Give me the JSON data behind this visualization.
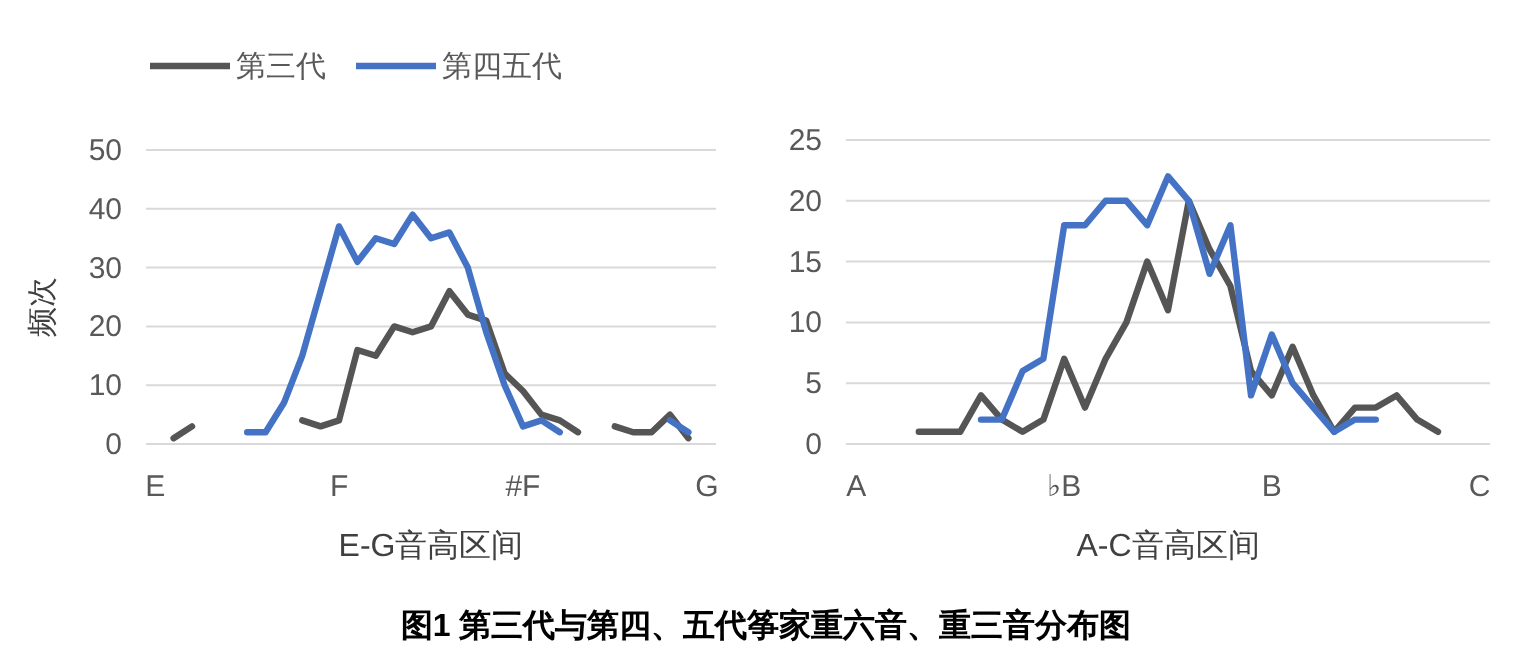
{
  "chart_data": [
    {
      "type": "line",
      "xlabel": "E-G音高区间",
      "ylabel": "频次",
      "legend": "top left",
      "ylim": [
        0,
        50
      ],
      "yticks": [
        0,
        10,
        20,
        30,
        40,
        50
      ],
      "grid": "y",
      "categories": [
        "E",
        null,
        null,
        null,
        null,
        null,
        null,
        null,
        null,
        null,
        "F",
        null,
        null,
        null,
        null,
        null,
        null,
        null,
        null,
        null,
        "#F",
        null,
        null,
        null,
        null,
        null,
        null,
        null,
        null,
        null,
        "G"
      ],
      "series": [
        {
          "name": "第三代",
          "color": "#555555",
          "values": [
            null,
            1,
            3,
            null,
            null,
            null,
            null,
            null,
            4,
            3,
            4,
            16,
            15,
            20,
            19,
            20,
            26,
            22,
            21,
            12,
            9,
            5,
            4,
            2,
            null,
            3,
            2,
            2,
            5,
            1,
            null
          ]
        },
        {
          "name": "第四五代",
          "color": "#4472c4",
          "values": [
            null,
            null,
            null,
            null,
            null,
            2,
            2,
            7,
            15,
            26,
            37,
            31,
            35,
            34,
            39,
            35,
            36,
            30,
            19,
            10,
            3,
            4,
            2,
            null,
            null,
            null,
            null,
            null,
            4,
            2,
            null
          ]
        }
      ],
      "annotations": [
        "图1   第三代与第四、五代筝家重六音、重三音分布图"
      ]
    },
    {
      "type": "line",
      "xlabel": "A-C音高区间",
      "ylim": [
        0,
        25
      ],
      "yticks": [
        0,
        5,
        10,
        15,
        20,
        25
      ],
      "grid": "y",
      "categories": [
        "A",
        null,
        null,
        null,
        null,
        null,
        null,
        null,
        null,
        null,
        "♭B",
        null,
        null,
        null,
        null,
        null,
        null,
        null,
        null,
        null,
        "B",
        null,
        null,
        null,
        null,
        null,
        null,
        null,
        null,
        null,
        "C"
      ],
      "series": [
        {
          "color": "#555555",
          "values": [
            null,
            null,
            null,
            1,
            1,
            1,
            4,
            2,
            1,
            2,
            7,
            3,
            7,
            10,
            15,
            11,
            20,
            16,
            13,
            6,
            4,
            8,
            4,
            1,
            3,
            3,
            4,
            2,
            1,
            null,
            null
          ]
        },
        {
          "color": "#4472c4",
          "values": [
            null,
            null,
            null,
            null,
            null,
            null,
            2,
            2,
            6,
            7,
            18,
            18,
            20,
            20,
            18,
            22,
            20,
            14,
            18,
            4,
            9,
            5,
            3,
            1,
            2,
            2,
            null,
            null,
            null,
            null,
            null
          ]
        }
      ]
    }
  ]
}
